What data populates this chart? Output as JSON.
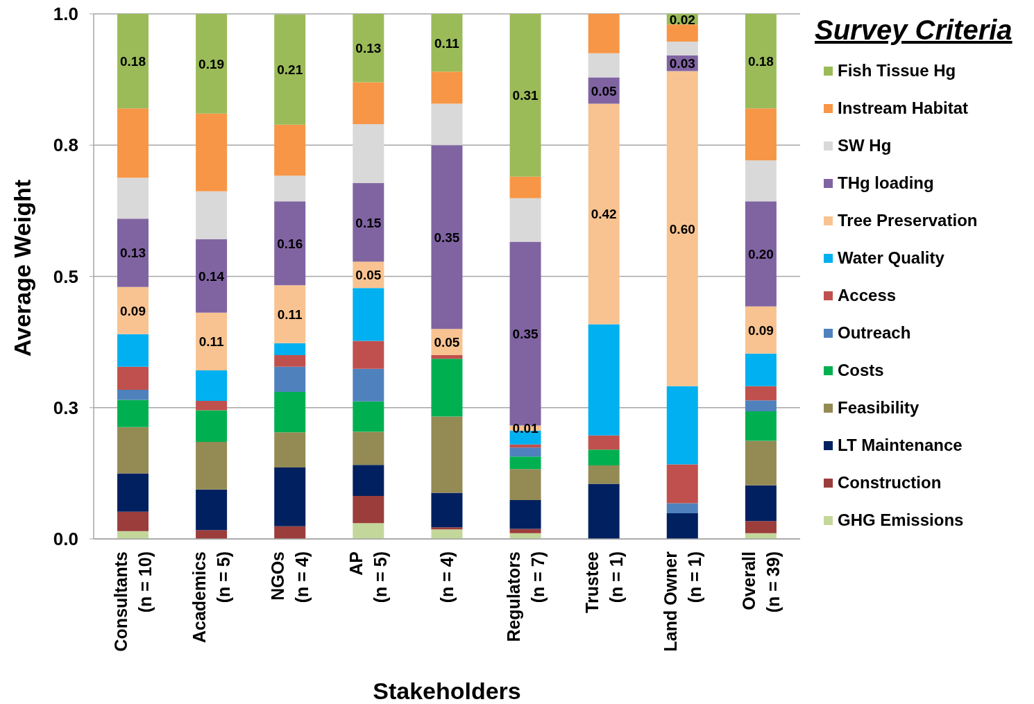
{
  "chart_data": {
    "type": "bar",
    "stacked": true,
    "xlabel": "Stakeholders",
    "ylabel": "Average Weight",
    "legend_title": "Survey Criteria",
    "categories": [
      "Consultants\n(n = 10)",
      "Academics\n(n = 5)",
      "NGOs\n(n = 4)",
      "AP\n(n = 5)",
      "(n = 4)",
      "Regulators\n(n = 7)",
      "Trustee\n(n = 1)",
      "Land Owner\n(n = 1)",
      "Overall\n(n = 39)"
    ],
    "series": [
      {
        "name": "GHG Emissions",
        "color": "#c4d79b",
        "values": [
          0.015,
          0,
          0,
          0.03,
          0.018,
          0.011,
          0,
          0,
          0.011
        ]
      },
      {
        "name": "Construction",
        "color": "#9b3d3b",
        "values": [
          0.037,
          0.017,
          0.024,
          0.052,
          0.004,
          0.008,
          0,
          0,
          0.023
        ]
      },
      {
        "name": "LT Maintenance",
        "color": "#002060",
        "values": [
          0.073,
          0.077,
          0.112,
          0.059,
          0.066,
          0.055,
          0.105,
          0.049,
          0.068
        ]
      },
      {
        "name": "Feasibility",
        "color": "#948a54",
        "values": [
          0.088,
          0.091,
          0.067,
          0.063,
          0.145,
          0.059,
          0.035,
          0,
          0.085
        ]
      },
      {
        "name": "Costs",
        "color": "#00b050",
        "values": [
          0.052,
          0.06,
          0.077,
          0.058,
          0.11,
          0.024,
          0.03,
          0,
          0.056
        ]
      },
      {
        "name": "Outreach",
        "color": "#4f81bd",
        "values": [
          0.019,
          0,
          0.048,
          0.062,
          0,
          0.017,
          0,
          0.019,
          0.021
        ]
      },
      {
        "name": "Access",
        "color": "#c0504d",
        "values": [
          0.044,
          0.018,
          0.022,
          0.053,
          0.007,
          0.006,
          0.027,
          0.074,
          0.027
        ]
      },
      {
        "name": "Water Quality",
        "color": "#00b0f0",
        "values": [
          0.062,
          0.058,
          0.023,
          0.101,
          0,
          0.026,
          0.212,
          0.149,
          0.062
        ]
      },
      {
        "name": "Tree Preservation",
        "color": "#f8c390",
        "values": [
          0.09,
          0.11,
          0.11,
          0.05,
          0.05,
          0.01,
          0.42,
          0.6,
          0.09
        ],
        "value_labels": [
          "0.09",
          "0.11",
          "0.11",
          "0.05",
          "0.05",
          "0.01",
          "0.42",
          "0.60",
          "0.09"
        ]
      },
      {
        "name": "THg loading",
        "color": "#8064a2",
        "values": [
          0.13,
          0.14,
          0.16,
          0.15,
          0.35,
          0.35,
          0.05,
          0.03,
          0.2
        ],
        "value_labels": [
          "0.13",
          "0.14",
          "0.16",
          "0.15",
          "0.35",
          "0.35",
          "0.05",
          "0.03",
          "0.20"
        ]
      },
      {
        "name": "SW Hg",
        "color": "#d9d9d9",
        "values": [
          0.078,
          0.091,
          0.049,
          0.112,
          0.079,
          0.083,
          0.046,
          0.026,
          0.078
        ]
      },
      {
        "name": "Instream Habitat",
        "color": "#f79646",
        "values": [
          0.132,
          0.148,
          0.097,
          0.08,
          0.061,
          0.041,
          0.075,
          0.033,
          0.099
        ]
      },
      {
        "name": "Fish Tissue Hg",
        "color": "#9bbb59",
        "values": [
          0.18,
          0.19,
          0.21,
          0.13,
          0.11,
          0.31,
          0,
          0.02,
          0.18
        ],
        "value_labels": [
          "0.18",
          "0.19",
          "0.21",
          "0.13",
          "0.11",
          "0.31",
          null,
          "0.02",
          "0.18"
        ]
      }
    ],
    "ylim": [
      0,
      1
    ],
    "yticks": [
      {
        "value": 0,
        "label": "0.0"
      },
      {
        "value": 0.25,
        "label": "0.3"
      },
      0.5,
      {
        "value": 0.75,
        "label": "0.8"
      },
      {
        "value": 1,
        "label": "1.0"
      }
    ],
    "grid": "y",
    "legend": "right"
  }
}
